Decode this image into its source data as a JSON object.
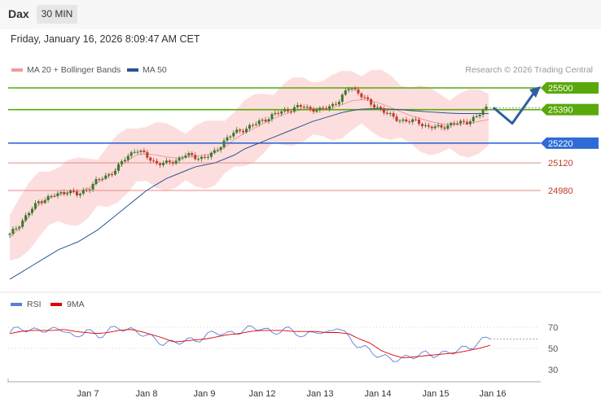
{
  "header": {
    "symbol": "Dax",
    "timeframe": "30 MIN"
  },
  "timestamp": "Friday, January 16, 2026 8:09:47 AM CET",
  "legend": {
    "bollinger": "MA 20 + Bollinger Bands",
    "ma50": "MA 50",
    "rsi": "RSI",
    "rsi_ma": "9MA"
  },
  "credit": "Research © 2026 Trading Central",
  "colors": {
    "up": "#3a7a2e",
    "down": "#c0392b",
    "bands": "#fdd8d8",
    "ma20": "#e98b8b",
    "ma50": "#2a5595",
    "resistance": "#5aa80a",
    "pivot": "#2f6bd6",
    "support": "#e88a8a",
    "rsi": "#5b7fd6",
    "rsi_ma": "#e00000",
    "arrow": "#2f5f9e"
  },
  "chart_data": [
    {
      "type": "candlestick",
      "x_ticks": [
        "Jan 7",
        "Jan 8",
        "Jan 9",
        "Jan 12",
        "Jan 13",
        "Jan 14",
        "Jan 15",
        "Jan 16"
      ],
      "levels": [
        {
          "value": 25500,
          "label": "25500",
          "kind": "resistance"
        },
        {
          "value": 25390,
          "label": "25390",
          "kind": "resistance"
        },
        {
          "value": 25220,
          "label": "25220",
          "kind": "pivot"
        },
        {
          "value": 25120,
          "label": "25120",
          "kind": "support"
        },
        {
          "value": 24980,
          "label": "24980",
          "kind": "support"
        }
      ],
      "close_path": [
        24755,
        24810,
        24870,
        24925,
        24945,
        24960,
        24980,
        24955,
        24990,
        25030,
        25055,
        25090,
        25150,
        25190,
        25155,
        25120,
        25115,
        25130,
        25160,
        25150,
        25145,
        25170,
        25230,
        25270,
        25290,
        25310,
        25335,
        25360,
        25380,
        25395,
        25405,
        25395,
        25385,
        25410,
        25440,
        25510,
        25470,
        25420,
        25400,
        25360,
        25340,
        25330,
        25330,
        25300,
        25300,
        25310,
        25320,
        25330,
        25350,
        25400
      ],
      "ma20": [
        24740,
        24790,
        24850,
        24910,
        24940,
        24960,
        24970,
        24975,
        24990,
        25020,
        25050,
        25090,
        25130,
        25160,
        25165,
        25160,
        25150,
        25145,
        25150,
        25155,
        25160,
        25170,
        25200,
        25240,
        25270,
        25295,
        25320,
        25345,
        25365,
        25380,
        25390,
        25395,
        25395,
        25400,
        25415,
        25435,
        25440,
        25435,
        25420,
        25400,
        25380,
        25360,
        25345,
        25330,
        25320,
        25315,
        25315,
        25320,
        25330,
        25340
      ],
      "ma50": [
        24530,
        24560,
        24590,
        24620,
        24650,
        24680,
        24700,
        24720,
        24750,
        24780,
        24820,
        24860,
        24900,
        24940,
        24980,
        25010,
        25040,
        25060,
        25080,
        25100,
        25110,
        25120,
        25140,
        25160,
        25190,
        25210,
        25230,
        25250,
        25270,
        25290,
        25310,
        25330,
        25345,
        25360,
        25375,
        25385,
        25392,
        25395,
        25395,
        25392,
        25390,
        25385,
        25382,
        25378,
        25375,
        25372,
        25370,
        25370,
        25370,
        25370
      ],
      "forecast": [
        25400,
        25320,
        25500
      ],
      "rsi_ticks": [
        "70",
        "50",
        "30"
      ],
      "rsi": [
        65,
        70,
        66,
        68,
        67,
        69,
        58,
        69,
        60,
        67,
        70,
        67,
        65,
        60,
        55,
        55,
        58,
        57,
        62,
        66,
        63,
        66,
        69,
        70,
        64,
        68,
        67,
        60,
        68,
        62,
        72,
        60,
        52,
        48,
        42,
        40,
        40,
        43,
        45,
        44,
        45,
        49,
        50,
        56,
        61
      ],
      "rsi_ma": [
        64,
        66,
        67,
        67,
        67,
        68,
        66,
        65,
        64,
        65,
        67,
        68,
        66,
        63,
        60,
        56,
        57,
        58,
        59,
        61,
        63,
        64,
        66,
        67,
        67,
        67,
        66,
        66,
        66,
        65,
        65,
        64,
        59,
        55,
        48,
        44,
        41,
        42,
        43,
        44,
        45,
        46,
        48,
        50,
        53
      ]
    }
  ]
}
